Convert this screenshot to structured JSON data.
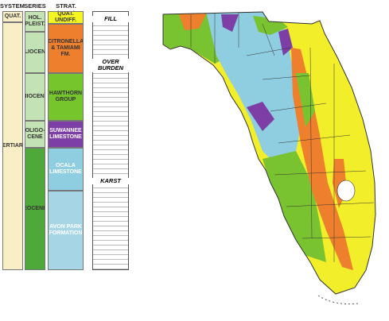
{
  "column": {
    "headers": [
      "SYSTEM",
      "SERIES",
      "STRAT. (GEN.)"
    ],
    "system": [
      "QUAT.",
      "TERTIARY"
    ],
    "series": [
      "HOL. PLEIST.",
      "PLIOCENE",
      "MIOCENE",
      "OLIGO- CENE",
      "EOCENE"
    ],
    "strat": [
      "QUAT. UNDIFF.",
      "CITRONELLA & TAMIAMI FM.",
      "HAWTHORN GROUP",
      "SUWANNEE LIMESTONE",
      "OCALA LIMESTONE",
      "AVON PARK FORMATION"
    ],
    "lithology": [
      "FILL",
      "OVER BURDEN",
      "KARST"
    ]
  }
}
